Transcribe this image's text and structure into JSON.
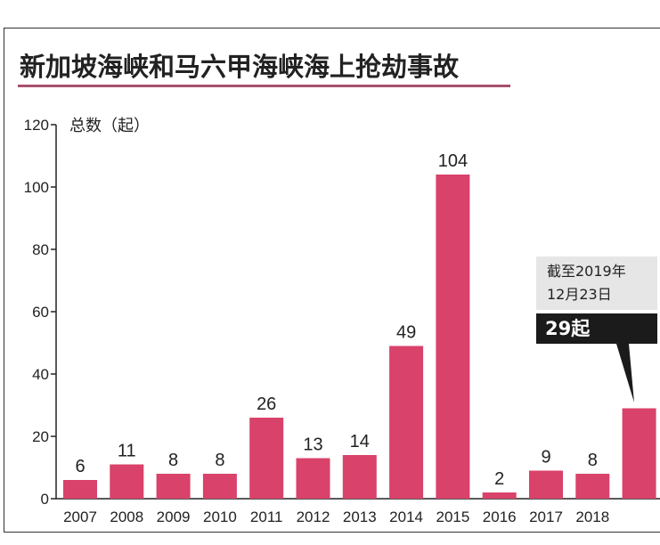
{
  "chart_data": {
    "type": "bar",
    "title": "新加坡海峡和马六甲海峡海上抢劫事故",
    "ylabel": "总数（起）",
    "xlabel": "",
    "ylim": [
      0,
      120
    ],
    "yticks": [
      0,
      20,
      40,
      60,
      80,
      100,
      120
    ],
    "categories": [
      "2007",
      "2008",
      "2009",
      "2010",
      "2011",
      "2012",
      "2013",
      "2014",
      "2015",
      "2016",
      "2017",
      "2018",
      "2019"
    ],
    "category_labels": [
      "2007",
      "2008",
      "2009",
      "2010",
      "2011",
      "2012",
      "2013",
      "2014",
      "2015",
      "2016",
      "2017",
      "2018",
      ""
    ],
    "values": [
      6,
      11,
      8,
      8,
      26,
      13,
      14,
      49,
      104,
      2,
      9,
      8,
      29
    ],
    "data_labels": [
      "6",
      "11",
      "8",
      "8",
      "26",
      "13",
      "14",
      "49",
      "104",
      "2",
      "9",
      "8",
      ""
    ],
    "bar_color": "#d9426a",
    "annotation": {
      "text_line1": "截至2019年",
      "text_line2": "12月23日",
      "value_label": "29起"
    }
  }
}
